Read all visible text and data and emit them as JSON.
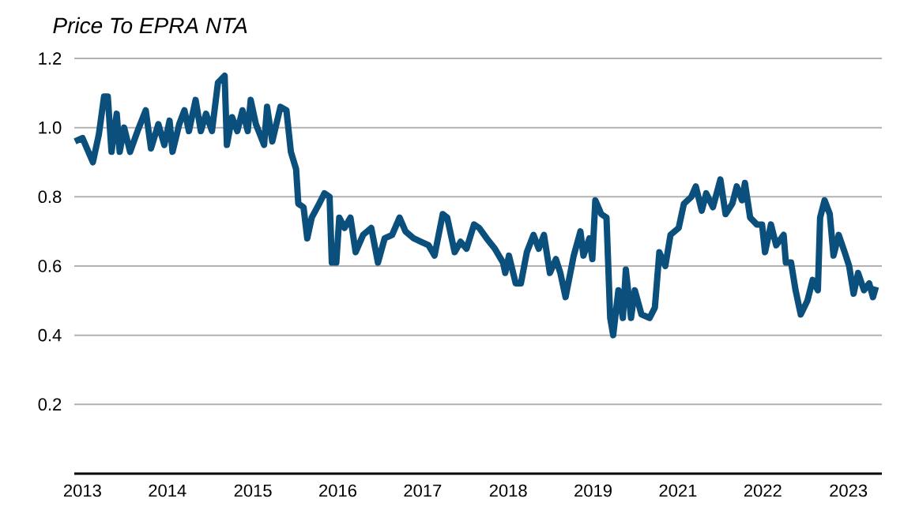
{
  "chart_data": {
    "type": "line",
    "title": "Price To EPRA NTA",
    "color": "#0b4f7c",
    "grid": "y",
    "xlim": [
      2012.46,
      2023.31
    ],
    "ylim": [
      0,
      1.2
    ],
    "xticks": [
      {
        "value": 2012.57,
        "label": "2013"
      },
      {
        "value": 2013.71,
        "label": "2014"
      },
      {
        "value": 2014.86,
        "label": "2015"
      },
      2016,
      {
        "value": 2017.14,
        "label": "2017"
      },
      {
        "value": 2018.29,
        "label": "2018"
      },
      {
        "value": 2019.43,
        "label": "2019"
      },
      {
        "value": 2020.57,
        "label": "2021"
      },
      {
        "value": 2021.71,
        "label": "2022"
      },
      {
        "value": 2022.86,
        "label": "2023"
      }
    ],
    "yticks": [
      0.2,
      0.4,
      0.6,
      0.8,
      {
        "value": 1,
        "label": "1.0"
      },
      1.2
    ],
    "x": [
      2012.47,
      2012.57,
      2012.71,
      2012.79,
      2012.86,
      2012.91,
      2012.96,
      2013.03,
      2013.07,
      2013.13,
      2013.21,
      2013.31,
      2013.42,
      2013.49,
      2013.59,
      2013.67,
      2013.74,
      2013.78,
      2013.87,
      2013.94,
      2014.0,
      2014.09,
      2014.16,
      2014.23,
      2014.31,
      2014.39,
      2014.48,
      2014.51,
      2014.58,
      2014.65,
      2014.72,
      2014.79,
      2014.83,
      2014.9,
      2015.01,
      2015.05,
      2015.12,
      2015.23,
      2015.31,
      2015.37,
      2015.44,
      2015.47,
      2015.54,
      2015.59,
      2015.65,
      2015.75,
      2015.82,
      2015.89,
      2015.92,
      2015.98,
      2016.02,
      2016.09,
      2016.17,
      2016.24,
      2016.34,
      2016.45,
      2016.54,
      2016.63,
      2016.73,
      2016.83,
      2016.91,
      2017.02,
      2017.12,
      2017.22,
      2017.3,
      2017.41,
      2017.47,
      2017.57,
      2017.65,
      2017.73,
      2017.83,
      2017.9,
      2018.0,
      2018.11,
      2018.22,
      2018.25,
      2018.3,
      2018.39,
      2018.46,
      2018.54,
      2018.63,
      2018.7,
      2018.77,
      2018.85,
      2018.93,
      2018.99,
      2019.06,
      2019.17,
      2019.26,
      2019.3,
      2019.38,
      2019.42,
      2019.46,
      2019.54,
      2019.61,
      2019.66,
      2019.7,
      2019.77,
      2019.83,
      2019.87,
      2019.94,
      2019.99,
      2020.08,
      2020.19,
      2020.26,
      2020.32,
      2020.4,
      2020.47,
      2020.58,
      2020.65,
      2020.75,
      2020.81,
      2020.89,
      2020.95,
      2021.04,
      2021.14,
      2021.21,
      2021.3,
      2021.36,
      2021.43,
      2021.47,
      2021.54,
      2021.63,
      2021.7,
      2021.74,
      2021.82,
      2021.89,
      2021.99,
      2022.02,
      2022.09,
      2022.15,
      2022.22,
      2022.31,
      2022.38,
      2022.45,
      2022.48,
      2022.54,
      2022.61,
      2022.66,
      2022.73,
      2022.81,
      2022.87,
      2022.93,
      2022.99,
      2023.07,
      2023.14,
      2023.19,
      2023.23
    ],
    "values": [
      0.96,
      0.97,
      0.9,
      0.98,
      1.09,
      1.09,
      0.93,
      1.04,
      0.93,
      1.0,
      0.93,
      0.99,
      1.05,
      0.94,
      1.01,
      0.95,
      1.02,
      0.93,
      1.01,
      1.05,
      0.99,
      1.08,
      0.99,
      1.04,
      0.99,
      1.13,
      1.15,
      0.95,
      1.03,
      0.99,
      1.05,
      0.99,
      1.08,
      1.01,
      0.95,
      1.06,
      0.96,
      1.06,
      1.05,
      0.93,
      0.88,
      0.78,
      0.77,
      0.68,
      0.74,
      0.78,
      0.81,
      0.8,
      0.61,
      0.61,
      0.74,
      0.71,
      0.74,
      0.64,
      0.69,
      0.71,
      0.61,
      0.68,
      0.69,
      0.74,
      0.7,
      0.68,
      0.67,
      0.66,
      0.63,
      0.75,
      0.74,
      0.64,
      0.67,
      0.65,
      0.72,
      0.71,
      0.68,
      0.65,
      0.61,
      0.58,
      0.63,
      0.55,
      0.55,
      0.64,
      0.69,
      0.65,
      0.69,
      0.58,
      0.62,
      0.58,
      0.51,
      0.63,
      0.7,
      0.63,
      0.68,
      0.62,
      0.79,
      0.75,
      0.74,
      0.45,
      0.4,
      0.53,
      0.45,
      0.59,
      0.45,
      0.53,
      0.46,
      0.45,
      0.48,
      0.64,
      0.6,
      0.69,
      0.71,
      0.78,
      0.8,
      0.83,
      0.76,
      0.81,
      0.77,
      0.85,
      0.75,
      0.78,
      0.83,
      0.79,
      0.84,
      0.74,
      0.72,
      0.72,
      0.64,
      0.72,
      0.66,
      0.69,
      0.61,
      0.61,
      0.53,
      0.46,
      0.5,
      0.56,
      0.53,
      0.74,
      0.79,
      0.75,
      0.63,
      0.69,
      0.64,
      0.6,
      0.52,
      0.58,
      0.53,
      0.55,
      0.51,
      0.54
    ]
  }
}
